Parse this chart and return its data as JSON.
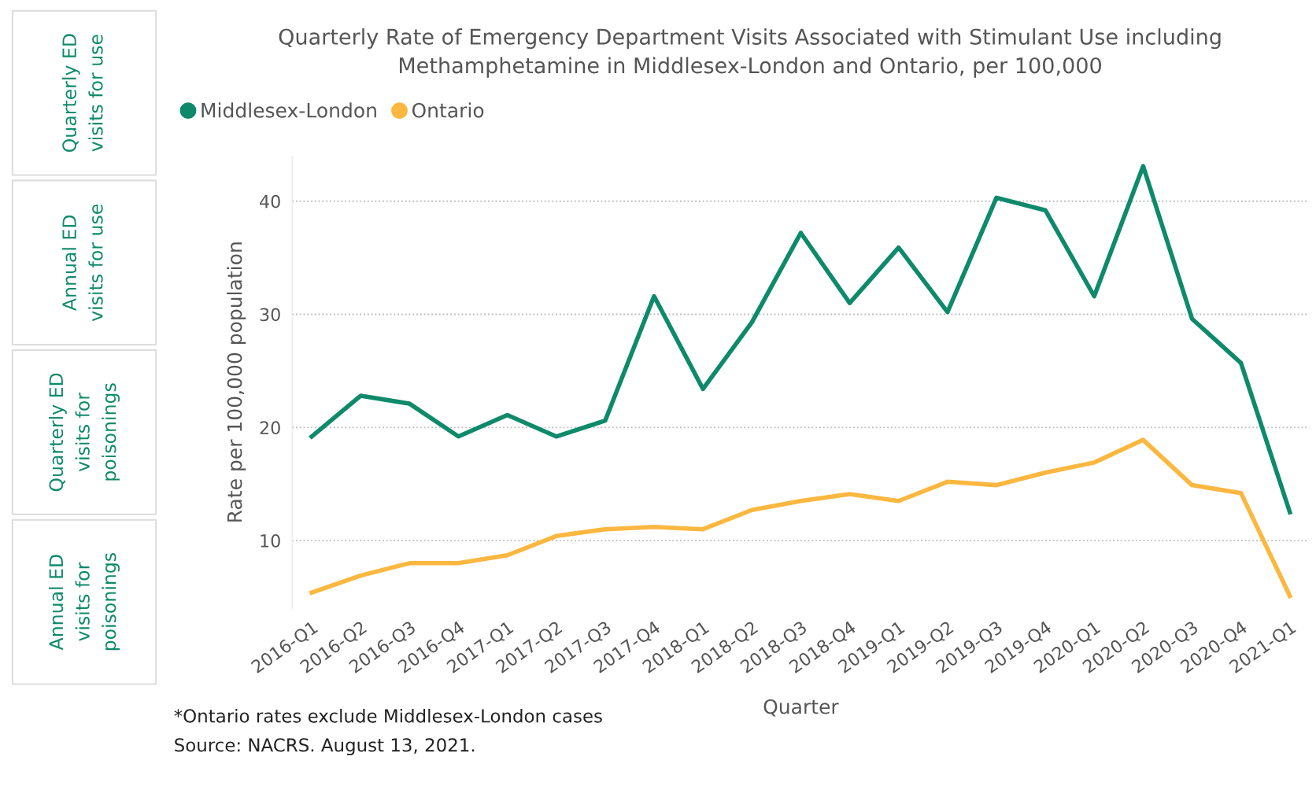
{
  "chart_data": [
    {
      "type": "other",
      "annotations": [
        "Quarterly ED\nvisits for use",
        "Annual ED\nvisits for use",
        "Quarterly ED\nvisits for\npoisonings",
        "Annual ED\nvisits for\npoisonings"
      ],
      "color": "#0e8a6b"
    },
    {
      "type": "line",
      "title": "Quarterly Rate of Emergency Department Visits Associated with Stimulant Use including\nMethamphetamine in Middlesex-London and Ontario, per 100,000",
      "xlabel": "Quarter",
      "ylabel": "Rate per 100,000 population",
      "categories": [
        "2016-Q1",
        "2016-Q2",
        "2016-Q3",
        "2016-Q4",
        "2017-Q1",
        "2017-Q2",
        "2017-Q3",
        "2017-Q4",
        "2018-Q1",
        "2018-Q2",
        "2018-Q3",
        "2018-Q4",
        "2019-Q1",
        "2019-Q2",
        "2019-Q3",
        "2019-Q4",
        "2020-Q1",
        "2020-Q2",
        "2020-Q3",
        "2020-Q4",
        "2021-Q1"
      ],
      "series": [
        {
          "name": "Middlesex-London",
          "color": "#0e8a6b",
          "values": [
            19.2,
            22.8,
            22.1,
            19.2,
            21.1,
            19.2,
            20.6,
            31.6,
            23.4,
            29.3,
            37.2,
            31.0,
            35.9,
            30.2,
            40.3,
            39.2,
            31.6,
            43.1,
            29.6,
            25.7,
            12.5
          ]
        },
        {
          "name": "Ontario",
          "color": "#fbb73f",
          "values": [
            5.4,
            6.9,
            8.0,
            8.0,
            8.7,
            10.4,
            11.0,
            11.2,
            11.0,
            12.7,
            13.5,
            14.1,
            13.5,
            15.2,
            14.9,
            16.0,
            16.9,
            18.9,
            14.9,
            14.2,
            5.1
          ]
        }
      ],
      "ylim": [
        4,
        44
      ],
      "yticks": [
        10,
        20,
        30,
        40
      ],
      "grid": "y",
      "legend": "top left",
      "line_style": "solid",
      "marker": "none",
      "annotations": [
        "*Ontario rates exclude Middlesex-London cases",
        "Source: NACRS. August 13, 2021."
      ]
    }
  ]
}
